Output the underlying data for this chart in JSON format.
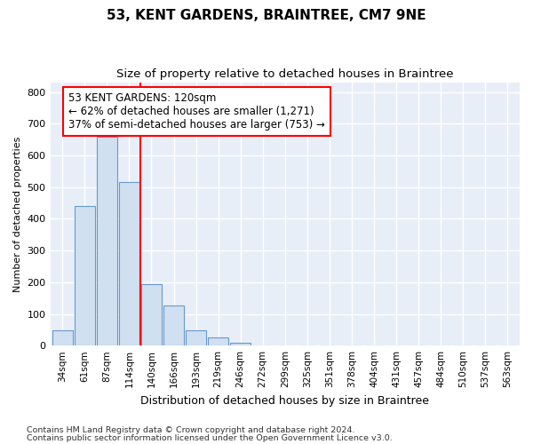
{
  "title": "53, KENT GARDENS, BRAINTREE, CM7 9NE",
  "subtitle": "Size of property relative to detached houses in Braintree",
  "xlabel": "Distribution of detached houses by size in Braintree",
  "ylabel": "Number of detached properties",
  "footnote1": "Contains HM Land Registry data © Crown copyright and database right 2024.",
  "footnote2": "Contains public sector information licensed under the Open Government Licence v3.0.",
  "bar_labels": [
    "34sqm",
    "61sqm",
    "87sqm",
    "114sqm",
    "140sqm",
    "166sqm",
    "193sqm",
    "219sqm",
    "246sqm",
    "272sqm",
    "299sqm",
    "325sqm",
    "351sqm",
    "378sqm",
    "404sqm",
    "431sqm",
    "457sqm",
    "484sqm",
    "510sqm",
    "537sqm",
    "563sqm"
  ],
  "bar_values": [
    48,
    440,
    658,
    515,
    193,
    127,
    48,
    25,
    10,
    0,
    0,
    0,
    0,
    0,
    0,
    0,
    0,
    0,
    0,
    0,
    0
  ],
  "bar_color": "#d0e0f0",
  "bar_edgecolor": "#6699cc",
  "vline_x_index": 3.5,
  "vline_color": "red",
  "annotation_line1": "53 KENT GARDENS: 120sqm",
  "annotation_line2": "← 62% of detached houses are smaller (1,271)",
  "annotation_line3": "37% of semi-detached houses are larger (753) →",
  "annotation_box_facecolor": "white",
  "annotation_box_edgecolor": "red",
  "ylim": [
    0,
    830
  ],
  "yticks": [
    0,
    100,
    200,
    300,
    400,
    500,
    600,
    700,
    800
  ],
  "axes_background": "#e8eef8",
  "grid_color": "white",
  "title_fontsize": 11,
  "subtitle_fontsize": 9.5,
  "ylabel_fontsize": 8,
  "xlabel_fontsize": 9,
  "tick_fontsize": 7.5,
  "annotation_fontsize": 8.5,
  "footnote_fontsize": 6.8
}
